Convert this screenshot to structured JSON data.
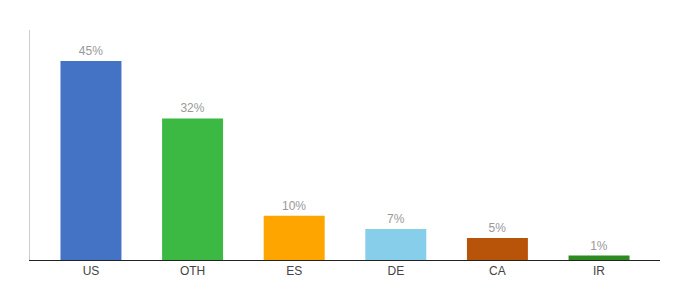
{
  "chart_data": {
    "type": "bar",
    "categories": [
      "US",
      "OTH",
      "ES",
      "DE",
      "CA",
      "IR"
    ],
    "values": [
      45,
      32,
      10,
      7,
      5,
      1
    ],
    "value_labels": [
      "45%",
      "32%",
      "10%",
      "7%",
      "5%",
      "1%"
    ],
    "colors": [
      "#4472C4",
      "#3CB943",
      "#FFA500",
      "#87CEEB",
      "#B8540A",
      "#2E8B22"
    ],
    "ylim": [
      0,
      52
    ],
    "data_labels": true,
    "tick_labels": "x",
    "grid": false
  }
}
